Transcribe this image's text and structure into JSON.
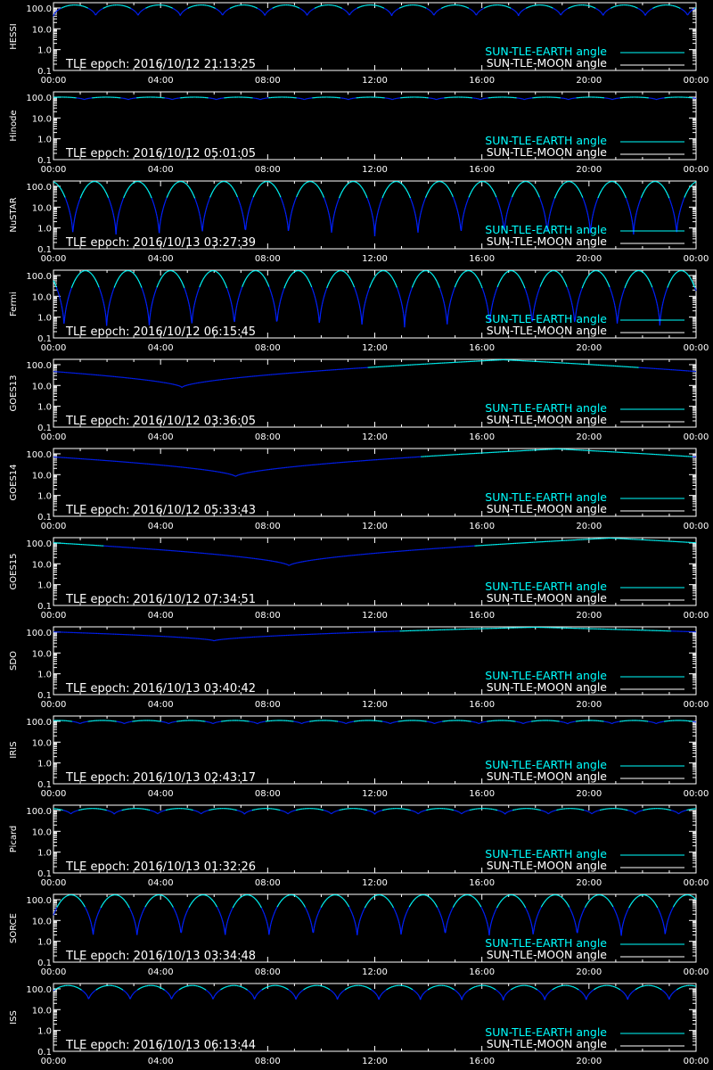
{
  "colors": {
    "background": "#000000",
    "axes": "#ffffff",
    "earth": "#00ffff",
    "moon": "#ffffff",
    "dip": "#0020ff"
  },
  "legend": {
    "earth_label": "SUN-TLE-EARTH angle",
    "moon_label": "SUN-TLE-MOON angle"
  },
  "x_tick_labels": [
    "00:00",
    "04:00",
    "08:00",
    "12:00",
    "16:00",
    "20:00",
    "00:00"
  ],
  "y_tick_labels": [
    "100.0",
    "10.0",
    "1.0",
    "0.1"
  ],
  "chart_data": [
    {
      "type": "line",
      "satellite": "HESSI",
      "epoch": "TLE epoch: 2016/10/12 21:13:25",
      "xlim": [
        0,
        24
      ],
      "ylim": [
        0.1,
        180
      ],
      "yscale": "log",
      "min_value": 40,
      "max_value": 140,
      "periods_per_day": 15.2,
      "phase": 0.0
    },
    {
      "type": "line",
      "satellite": "Hinode",
      "epoch": "TLE epoch: 2016/10/12 05:01:05",
      "xlim": [
        0,
        24
      ],
      "ylim": [
        0.1,
        180
      ],
      "yscale": "log",
      "min_value": 75,
      "max_value": 100,
      "periods_per_day": 14.6,
      "phase": 0.3
    },
    {
      "type": "line",
      "satellite": "NuSTAR",
      "epoch": "TLE epoch: 2016/10/13 03:27:39",
      "xlim": [
        0,
        24
      ],
      "ylim": [
        0.1,
        180
      ],
      "yscale": "log",
      "min_value": 0.4,
      "max_value": 170,
      "periods_per_day": 14.9,
      "phase": 0.55
    },
    {
      "type": "line",
      "satellite": "Fermi",
      "epoch": "TLE epoch: 2016/10/12 06:15:45",
      "xlim": [
        0,
        24
      ],
      "ylim": [
        0.1,
        180
      ],
      "yscale": "log",
      "min_value": 0.3,
      "max_value": 170,
      "periods_per_day": 15.1,
      "phase": 0.75
    },
    {
      "type": "line",
      "satellite": "GOES13",
      "epoch": "TLE epoch: 2016/10/12 03:36:05",
      "xlim": [
        0,
        24
      ],
      "ylim": [
        0.1,
        180
      ],
      "yscale": "log",
      "min_value": 8,
      "max_value": 172,
      "dip_time": 4.8
    },
    {
      "type": "line",
      "satellite": "GOES14",
      "epoch": "TLE epoch: 2016/10/12 05:33:43",
      "xlim": [
        0,
        24
      ],
      "ylim": [
        0.1,
        180
      ],
      "yscale": "log",
      "min_value": 8,
      "max_value": 172,
      "dip_time": 6.8
    },
    {
      "type": "line",
      "satellite": "GOES15",
      "epoch": "TLE epoch: 2016/10/12 07:34:51",
      "xlim": [
        0,
        24
      ],
      "ylim": [
        0.1,
        180
      ],
      "yscale": "log",
      "min_value": 8,
      "max_value": 172,
      "dip_time": 8.8
    },
    {
      "type": "line",
      "satellite": "SDO",
      "epoch": "TLE epoch: 2016/10/13 03:40:42",
      "xlim": [
        0,
        24
      ],
      "ylim": [
        0.1,
        180
      ],
      "yscale": "log",
      "min_value": 38,
      "max_value": 172,
      "dip_time": 6.0
    },
    {
      "type": "line",
      "satellite": "IRIS",
      "epoch": "TLE epoch: 2016/10/13 02:43:17",
      "xlim": [
        0,
        24
      ],
      "ylim": [
        0.1,
        180
      ],
      "yscale": "log",
      "min_value": 75,
      "max_value": 110,
      "periods_per_day": 14.5,
      "phase": 0.4
    },
    {
      "type": "line",
      "satellite": "Picard",
      "epoch": "TLE epoch: 2016/10/13 01:32:26",
      "xlim": [
        0,
        24
      ],
      "ylim": [
        0.1,
        180
      ],
      "yscale": "log",
      "min_value": 65,
      "max_value": 125,
      "periods_per_day": 14.8,
      "phase": 0.6
    },
    {
      "type": "line",
      "satellite": "SORCE",
      "epoch": "TLE epoch: 2016/10/13 03:34:48",
      "xlim": [
        0,
        24
      ],
      "ylim": [
        0.1,
        180
      ],
      "yscale": "log",
      "min_value": 1.5,
      "max_value": 170,
      "periods_per_day": 14.6,
      "phase": 0.1
    },
    {
      "type": "line",
      "satellite": "ISS",
      "epoch": "TLE epoch: 2016/10/13 06:13:44",
      "xlim": [
        0,
        24
      ],
      "ylim": [
        0.1,
        180
      ],
      "yscale": "log",
      "min_value": 28,
      "max_value": 145,
      "periods_per_day": 15.5,
      "phase": 0.15
    }
  ]
}
